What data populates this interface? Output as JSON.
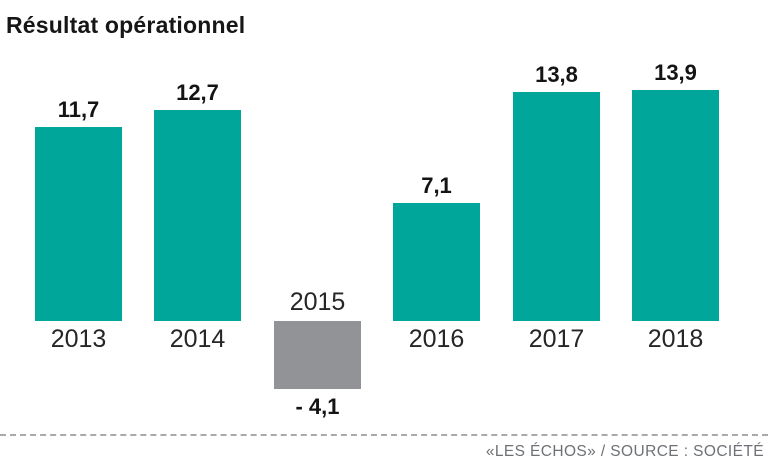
{
  "header": {
    "title": "Résultat opérationnel"
  },
  "footer": {
    "credit": "«LES ÉCHOS» / SOURCE : SOCIÉTÉ"
  },
  "colors": {
    "positive_bar": "#00A69A",
    "negative_bar": "#919396",
    "title_text": "#161616",
    "label_text": "#141414",
    "year_text": "#262626",
    "credit_text": "#6d7175",
    "divider": "#a6aaad"
  },
  "chart_data": {
    "type": "bar",
    "title": "Résultat opérationnel",
    "categories": [
      "2013",
      "2014",
      "2015",
      "2016",
      "2017",
      "2018"
    ],
    "values": [
      11.7,
      12.7,
      -4.1,
      7.1,
      13.8,
      13.9
    ],
    "value_labels": [
      "11,7",
      "12,7",
      "- 4,1",
      "7,1",
      "13,8",
      "13,9"
    ],
    "bar_colors": [
      "#00A69A",
      "#00A69A",
      "#919396",
      "#00A69A",
      "#00A69A",
      "#00A69A"
    ],
    "xlabel": "",
    "ylabel": "",
    "baseline_value": 0,
    "ylim": [
      -5,
      15
    ],
    "grid": false,
    "legend": false,
    "annotations": "negative 2015 bar drawn below baseline in gray; value labels above positive bars, below negative bar; year labels on opposite side of baseline from bar value"
  }
}
